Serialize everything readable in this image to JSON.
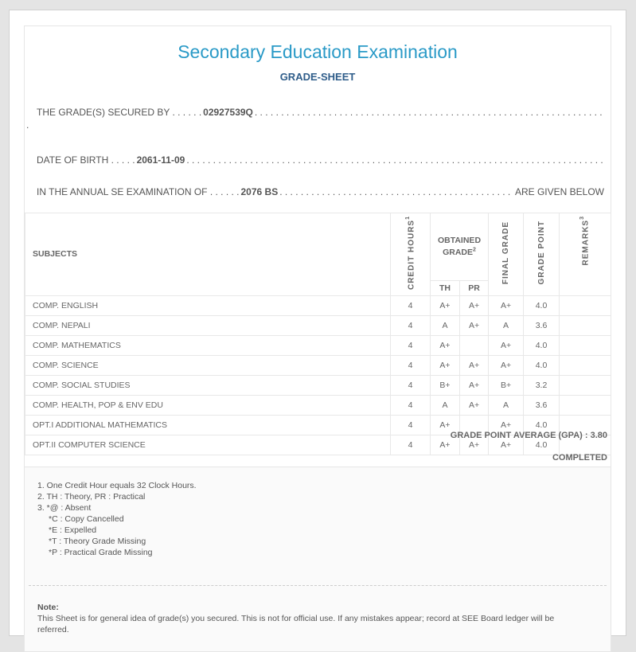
{
  "header": {
    "title": "Secondary Education Examination",
    "subtitle": "GRADE-SHEET"
  },
  "student": {
    "secured_by_label": "THE GRADE(S) SECURED BY . . . . . .",
    "secured_by": "02927539Q",
    "dob_label": "DATE OF BIRTH . . . . .",
    "dob": "2061-11-09",
    "exam_label": "IN THE ANNUAL SE EXAMINATION OF . . . . . .",
    "exam": "2076 BS",
    "exam_suffix": "ARE GIVEN BELOW"
  },
  "table": {
    "headers": {
      "subjects": "SUBJECTS",
      "credit": "CREDIT HOURS",
      "credit_sup": "1",
      "obtained": "OBTAINED GRADE",
      "obtained_sup": "2",
      "th": "TH",
      "pr": "PR",
      "final": "FINAL GRADE",
      "point": "GRADE POINT",
      "remarks": "REMARKS",
      "remarks_sup": "3"
    },
    "rows": [
      {
        "subject": "COMP. ENGLISH",
        "credit": "4",
        "th": "A+",
        "pr": "A+",
        "final": "A+",
        "point": "4.0",
        "remarks": ""
      },
      {
        "subject": "COMP. NEPALI",
        "credit": "4",
        "th": "A",
        "pr": "A+",
        "final": "A",
        "point": "3.6",
        "remarks": ""
      },
      {
        "subject": "COMP. MATHEMATICS",
        "credit": "4",
        "th": "A+",
        "pr": "",
        "final": "A+",
        "point": "4.0",
        "remarks": ""
      },
      {
        "subject": "COMP. SCIENCE",
        "credit": "4",
        "th": "A+",
        "pr": "A+",
        "final": "A+",
        "point": "4.0",
        "remarks": ""
      },
      {
        "subject": "COMP. SOCIAL STUDIES",
        "credit": "4",
        "th": "B+",
        "pr": "A+",
        "final": "B+",
        "point": "3.2",
        "remarks": ""
      },
      {
        "subject": "COMP. HEALTH, POP & ENV EDU",
        "credit": "4",
        "th": "A",
        "pr": "A+",
        "final": "A",
        "point": "3.6",
        "remarks": ""
      },
      {
        "subject": "OPT.I ADDITIONAL MATHEMATICS",
        "credit": "4",
        "th": "A+",
        "pr": "",
        "final": "A+",
        "point": "4.0",
        "remarks": ""
      },
      {
        "subject": "OPT.II COMPUTER SCIENCE",
        "credit": "4",
        "th": "A+",
        "pr": "A+",
        "final": "A+",
        "point": "4.0",
        "remarks": ""
      }
    ]
  },
  "summary": {
    "gpa": "GRADE POINT AVERAGE (GPA) : 3.80",
    "status": "COMPLETED"
  },
  "footnotes": [
    "1. One Credit Hour equals 32 Clock Hours.",
    "2. TH : Theory, PR : Practical",
    "3. *@ : Absent",
    "*C : Copy Cancelled",
    "*E : Expelled",
    "*T : Theory Grade Missing",
    "*P : Practical Grade Missing"
  ],
  "note": {
    "label": "Note:",
    "text": "This Sheet is for general idea of grade(s) you secured. This is not for official use. If any mistakes appear; record at SEE Board ledger will be referred."
  }
}
